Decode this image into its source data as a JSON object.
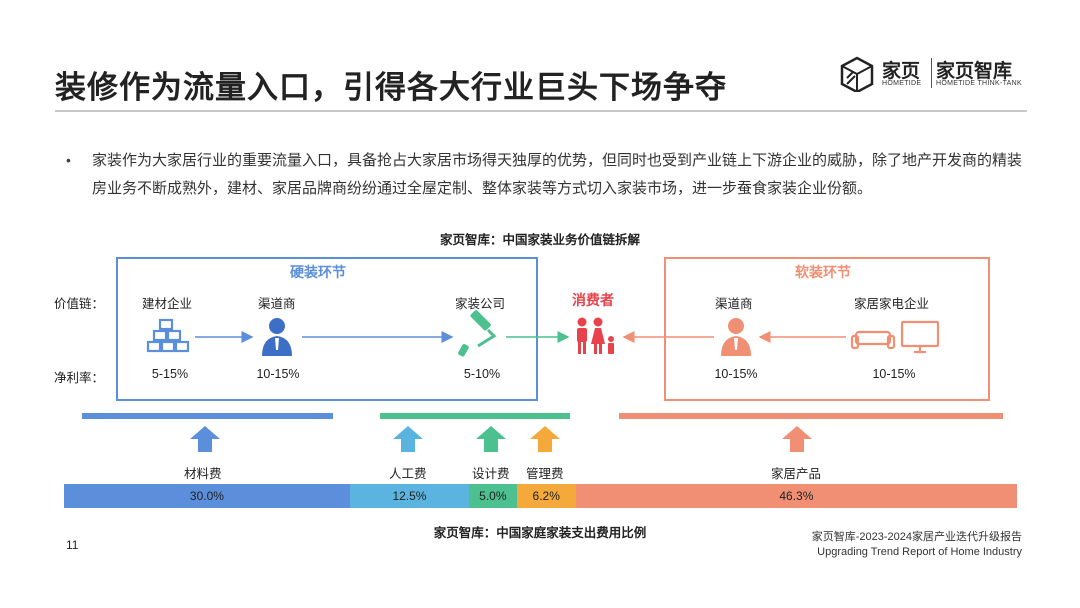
{
  "header": {
    "title": "装修作为流量入口，引得各大行业巨头下场争夺",
    "logo": {
      "brand": "家页",
      "brand_sub": "HOMETIDE",
      "brand2": "家页智库",
      "brand2_sub": "HOMETIDE THINK-TANK"
    }
  },
  "bullet": {
    "marker": "•",
    "text": "家装作为大家居行业的重要流量入口，具备抢占大家居市场得天独厚的优势，但同时也受到产业链上下游企业的威胁，除了地产开发商的精装房业务不断成熟外，建材、家居品牌商纷纷通过全屋定制、整体家装等方式切入家装市场，进一步蚕食家装企业份额。"
  },
  "diagram": {
    "title": "家页智库：中国家装业务价值链拆解",
    "row_labels": {
      "value_chain": "价值链：",
      "net_margin": "净利率："
    },
    "hard_section": "硬装环节",
    "soft_section": "软装环节",
    "consumer": "消费者",
    "nodes": [
      {
        "label": "建材企业",
        "margin": "5-15%",
        "icon": "bricks-icon"
      },
      {
        "label": "渠道商",
        "margin": "10-15%",
        "icon": "person-icon"
      },
      {
        "label": "家装公司",
        "margin": "5-10%",
        "icon": "paint-roller-icon"
      },
      {
        "label": "渠道商",
        "margin": "10-15%",
        "icon": "person-icon"
      },
      {
        "label": "家居家电企业",
        "margin": "10-15%",
        "icon": "sofa-tv-icon"
      }
    ],
    "colors": {
      "hard": "#5b8fdc",
      "design": "#4cc08e",
      "manage": "#f5a93b",
      "soft": "#f08f73",
      "consumer": "#e8434c"
    }
  },
  "chart_data": {
    "type": "bar",
    "title": "家页智库：中国家庭家装支出费用比例",
    "categories": [
      "材料费",
      "人工费",
      "设计费",
      "管理费",
      "家居产品"
    ],
    "values": [
      30.0,
      12.5,
      5.0,
      6.2,
      46.3
    ],
    "labels": [
      "30.0%",
      "12.5%",
      "5.0%",
      "6.2%",
      "46.3%"
    ],
    "colors": [
      "#5b8fdc",
      "#5bb4e0",
      "#4cc08e",
      "#f5a93b",
      "#f08f73"
    ],
    "stacked": true
  },
  "footer": {
    "page_number": "11",
    "report_cn": "家页智库-2023-2024家居产业迭代升级报告",
    "report_en": "Upgrading Trend Report of Home Industry"
  }
}
